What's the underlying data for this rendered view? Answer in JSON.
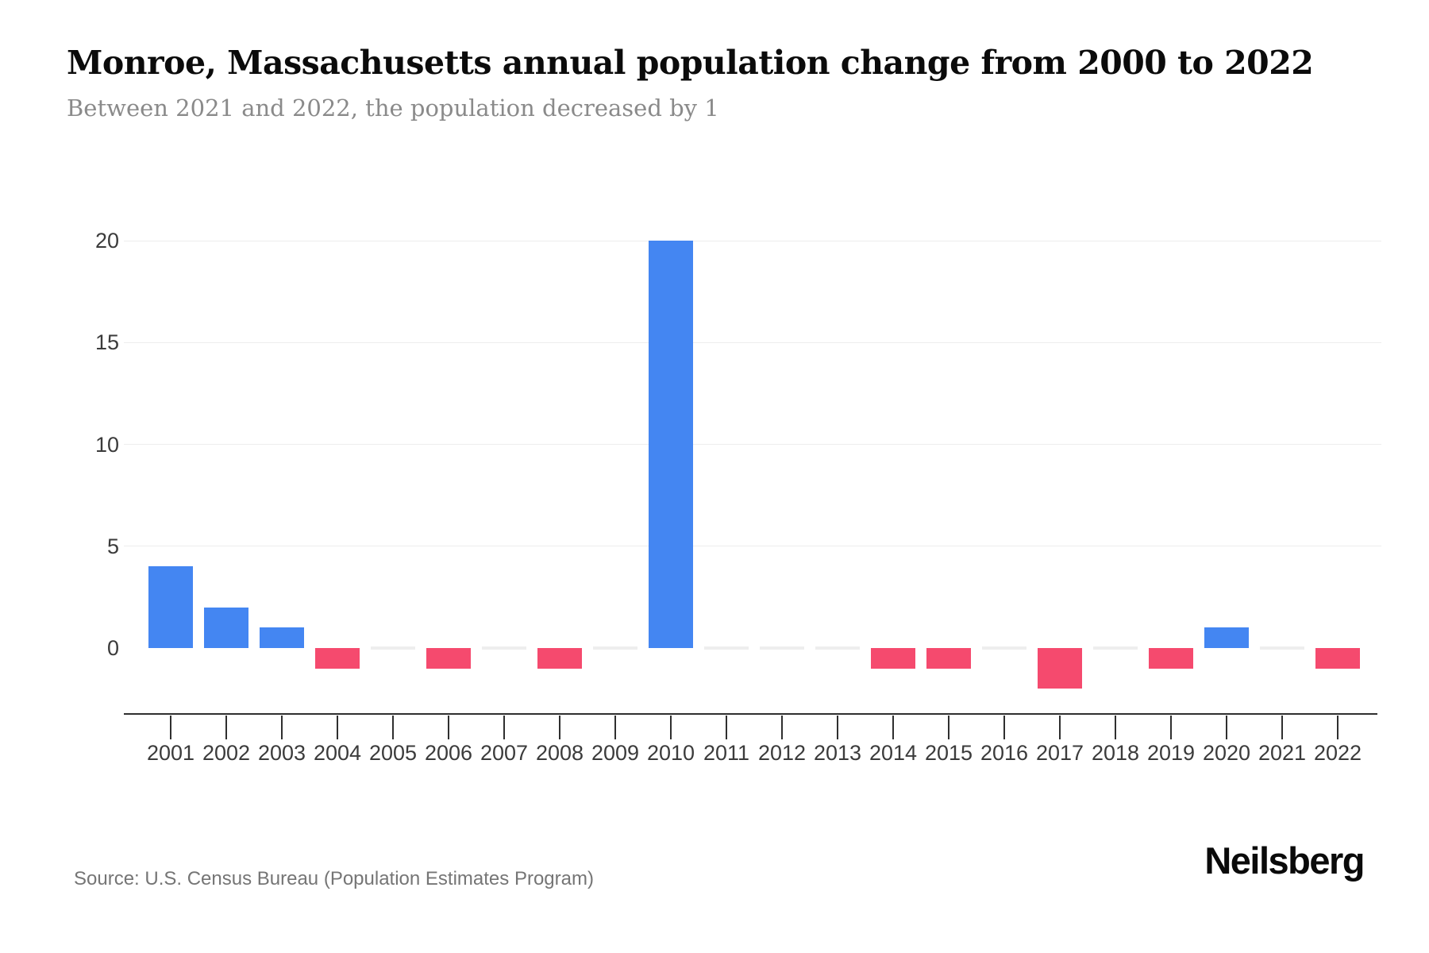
{
  "header": {
    "title": "Monroe, Massachusetts annual population change from 2000 to 2022",
    "subtitle": "Between 2021 and 2022, the population decreased by 1"
  },
  "chart_data": {
    "type": "bar",
    "title": "Monroe, Massachusetts annual population change from 2000 to 2022",
    "subtitle": "Between 2021 and 2022, the population decreased by 1",
    "categories": [
      "2001",
      "2002",
      "2003",
      "2004",
      "2005",
      "2006",
      "2007",
      "2008",
      "2009",
      "2010",
      "2011",
      "2012",
      "2013",
      "2014",
      "2015",
      "2016",
      "2017",
      "2018",
      "2019",
      "2020",
      "2021",
      "2022"
    ],
    "values": [
      4,
      2,
      1,
      -1,
      0,
      -1,
      0,
      -1,
      0,
      20,
      0,
      0,
      0,
      -1,
      -1,
      0,
      -2,
      0,
      -1,
      1,
      0,
      -1
    ],
    "xlabel": "",
    "ylabel": "",
    "yticks": [
      0,
      5,
      10,
      15,
      20
    ],
    "ylim": [
      -3,
      22
    ],
    "grid": "horizontal",
    "legend": "none",
    "colors": {
      "positive": "#4486F2",
      "negative": "#F54A6E",
      "zero_marker": "#EEEEEE",
      "gridline": "#EDEDED",
      "axis": "#2F2F2F",
      "tick_label": "#3B3B3B"
    }
  },
  "footer": {
    "source": "Source: U.S. Census Bureau (Population Estimates Program)",
    "logo": "Neilsberg"
  }
}
